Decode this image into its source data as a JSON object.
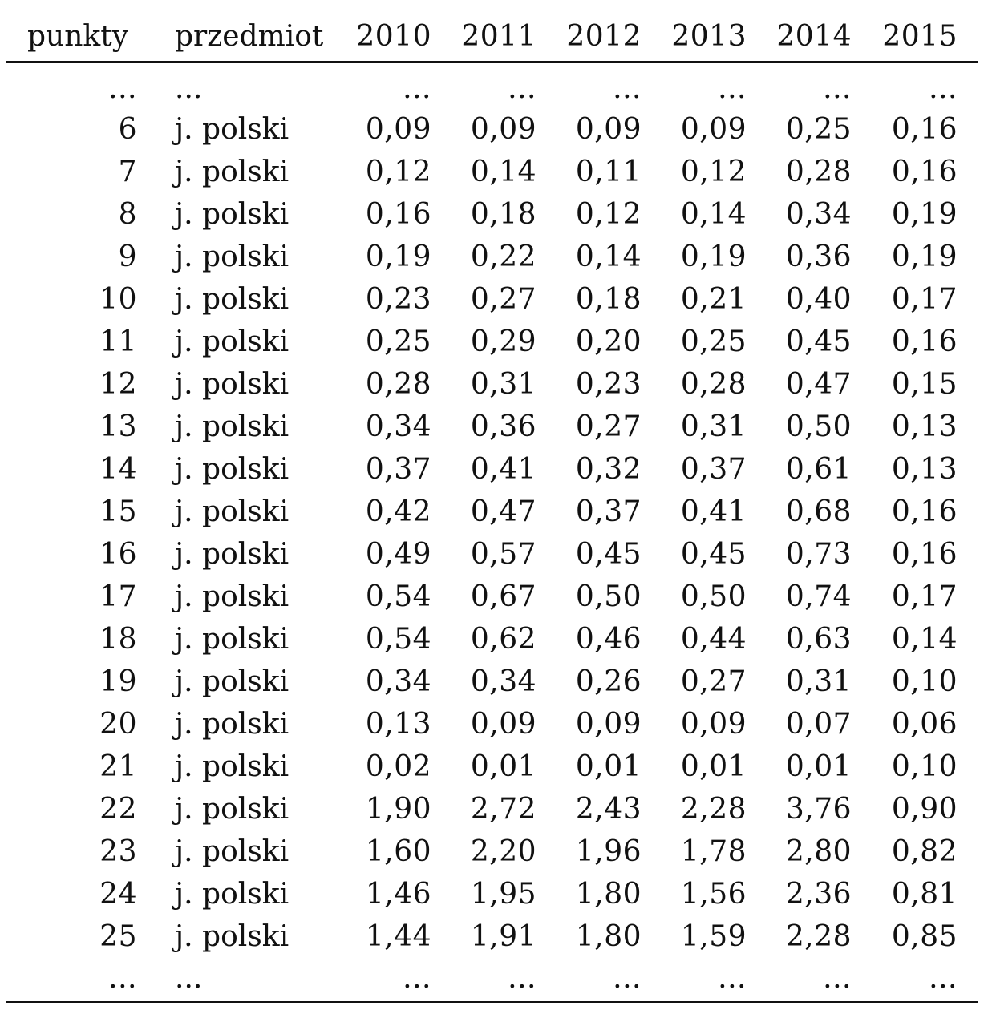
{
  "table": {
    "headers": [
      "punkty",
      "przedmiot",
      "2010",
      "2011",
      "2012",
      "2013",
      "2014",
      "2015"
    ],
    "rows": [
      [
        "...",
        "...",
        "...",
        "...",
        "...",
        "...",
        "...",
        "..."
      ],
      [
        "6",
        "j. polski",
        "0,09",
        "0,09",
        "0,09",
        "0,09",
        "0,25",
        "0,16"
      ],
      [
        "7",
        "j. polski",
        "0,12",
        "0,14",
        "0,11",
        "0,12",
        "0,28",
        "0,16"
      ],
      [
        "8",
        "j. polski",
        "0,16",
        "0,18",
        "0,12",
        "0,14",
        "0,34",
        "0,19"
      ],
      [
        "9",
        "j. polski",
        "0,19",
        "0,22",
        "0,14",
        "0,19",
        "0,36",
        "0,19"
      ],
      [
        "10",
        "j. polski",
        "0,23",
        "0,27",
        "0,18",
        "0,21",
        "0,40",
        "0,17"
      ],
      [
        "11",
        "j. polski",
        "0,25",
        "0,29",
        "0,20",
        "0,25",
        "0,45",
        "0,16"
      ],
      [
        "12",
        "j. polski",
        "0,28",
        "0,31",
        "0,23",
        "0,28",
        "0,47",
        "0,15"
      ],
      [
        "13",
        "j. polski",
        "0,34",
        "0,36",
        "0,27",
        "0,31",
        "0,50",
        "0,13"
      ],
      [
        "14",
        "j. polski",
        "0,37",
        "0,41",
        "0,32",
        "0,37",
        "0,61",
        "0,13"
      ],
      [
        "15",
        "j. polski",
        "0,42",
        "0,47",
        "0,37",
        "0,41",
        "0,68",
        "0,16"
      ],
      [
        "16",
        "j. polski",
        "0,49",
        "0,57",
        "0,45",
        "0,45",
        "0,73",
        "0,16"
      ],
      [
        "17",
        "j. polski",
        "0,54",
        "0,67",
        "0,50",
        "0,50",
        "0,74",
        "0,17"
      ],
      [
        "18",
        "j. polski",
        "0,54",
        "0,62",
        "0,46",
        "0,44",
        "0,63",
        "0,14"
      ],
      [
        "19",
        "j. polski",
        "0,34",
        "0,34",
        "0,26",
        "0,27",
        "0,31",
        "0,10"
      ],
      [
        "20",
        "j. polski",
        "0,13",
        "0,09",
        "0,09",
        "0,09",
        "0,07",
        "0,06"
      ],
      [
        "21",
        "j. polski",
        "0,02",
        "0,01",
        "0,01",
        "0,01",
        "0,01",
        "0,10"
      ],
      [
        "22",
        "j. polski",
        "1,90",
        "2,72",
        "2,43",
        "2,28",
        "3,76",
        "0,90"
      ],
      [
        "23",
        "j. polski",
        "1,60",
        "2,20",
        "1,96",
        "1,78",
        "2,80",
        "0,82"
      ],
      [
        "24",
        "j. polski",
        "1,46",
        "1,95",
        "1,80",
        "1,56",
        "2,36",
        "0,81"
      ],
      [
        "25",
        "j. polski",
        "1,44",
        "1,91",
        "1,80",
        "1,59",
        "2,28",
        "0,85"
      ],
      [
        "...",
        "...",
        "...",
        "...",
        "...",
        "...",
        "...",
        "..."
      ]
    ]
  }
}
